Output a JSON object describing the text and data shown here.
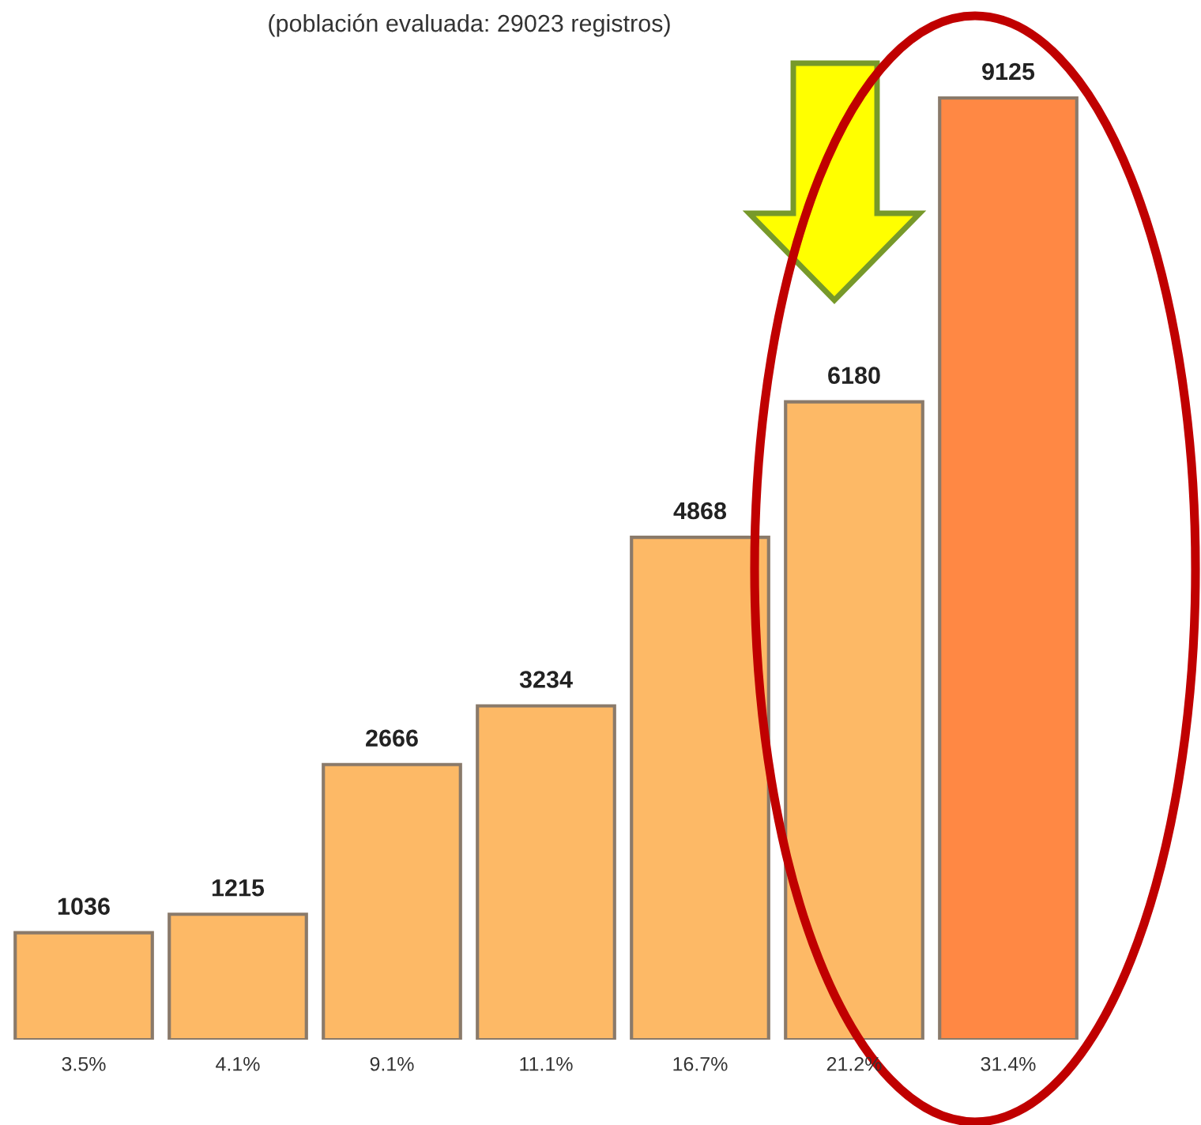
{
  "chart_data": {
    "type": "bar",
    "title": "(población evaluada: 29023 registros)",
    "categories": [
      "3.5%",
      "4.1%",
      "9.1%",
      "11.1%",
      "16.7%",
      "21.2%",
      "31.4%"
    ],
    "values": [
      1036,
      1215,
      2666,
      3234,
      4868,
      6180,
      9125
    ],
    "colors": [
      "#fdb966",
      "#fdb966",
      "#fdb966",
      "#fdb966",
      "#fdb966",
      "#fdb966",
      "#ff8844"
    ],
    "data_labels": true
  }
}
